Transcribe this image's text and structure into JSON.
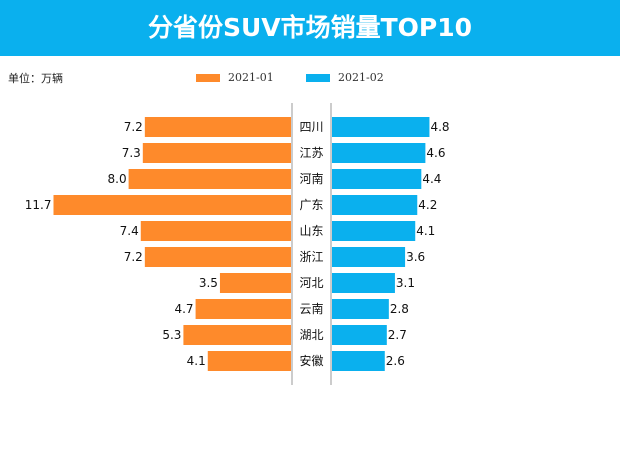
{
  "title": "分省份SUV市场销量TOP10",
  "chart_data": {
    "type": "bar",
    "orientation": "horizontal-butterfly",
    "title": "分省份SUV市场销量TOP10",
    "unit_label": "单位：万辆",
    "categories": [
      "四川",
      "江苏",
      "河南",
      "广东",
      "山东",
      "浙江",
      "河北",
      "云南",
      "湖北",
      "安徽"
    ],
    "series": [
      {
        "name": "2021-01",
        "color": "#fe8a2b",
        "side": "left",
        "values": [
          7.2,
          7.3,
          8.0,
          11.7,
          7.4,
          7.2,
          3.5,
          4.7,
          5.3,
          4.1
        ]
      },
      {
        "name": "2021-02",
        "color": "#0ab0ee",
        "side": "right",
        "values": [
          4.8,
          4.6,
          4.4,
          4.2,
          4.1,
          3.6,
          3.1,
          2.8,
          2.7,
          2.6
        ]
      }
    ],
    "legend": "top-center",
    "grid": false
  }
}
